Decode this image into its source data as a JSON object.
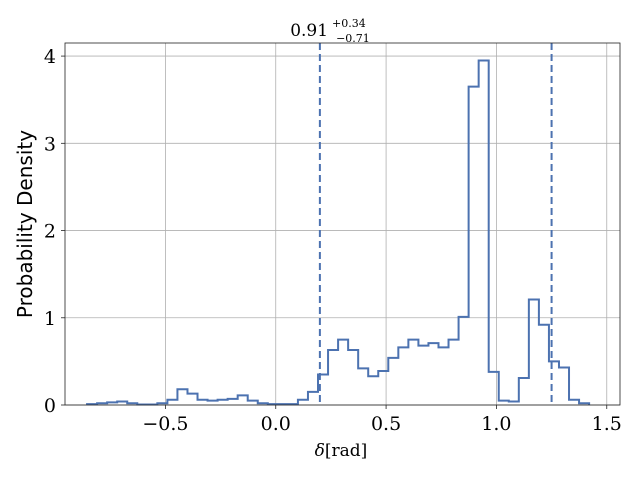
{
  "chart_data": {
    "type": "histogram",
    "title": "0.91",
    "title_sup": "+0.34",
    "title_sub": "−0.71",
    "xlabel_symbol": "δ",
    "xlabel_unit": "[rad]",
    "ylabel": "Probability Density",
    "xlim": [
      -0.955,
      1.56
    ],
    "ylim": [
      0,
      4.15
    ],
    "grid": true,
    "line_color": "#4c72b0",
    "x_ticks": [
      -0.5,
      0.0,
      0.5,
      1.0,
      1.5
    ],
    "x_tick_labels": [
      "−0.5",
      "0.0",
      "0.5",
      "1.0",
      "1.5"
    ],
    "y_ticks": [
      0,
      1,
      2,
      3,
      4
    ],
    "y_tick_labels": [
      "0",
      "1",
      "2",
      "3",
      "4"
    ],
    "bin_start": -0.855,
    "bin_width": 0.0455,
    "values": [
      0.01,
      0.02,
      0.03,
      0.04,
      0.02,
      0.005,
      0.005,
      0.02,
      0.06,
      0.18,
      0.13,
      0.06,
      0.05,
      0.06,
      0.07,
      0.11,
      0.05,
      0.02,
      0.01,
      0.01,
      0.01,
      0.06,
      0.15,
      0.35,
      0.63,
      0.75,
      0.63,
      0.42,
      0.33,
      0.39,
      0.54,
      0.66,
      0.75,
      0.68,
      0.71,
      0.66,
      0.75,
      1.01,
      3.65,
      3.95,
      0.38,
      0.05,
      0.04,
      0.31,
      1.21,
      0.92,
      0.5,
      0.43,
      0.06,
      0.02
    ],
    "vlines": [
      0.2,
      1.25
    ]
  }
}
